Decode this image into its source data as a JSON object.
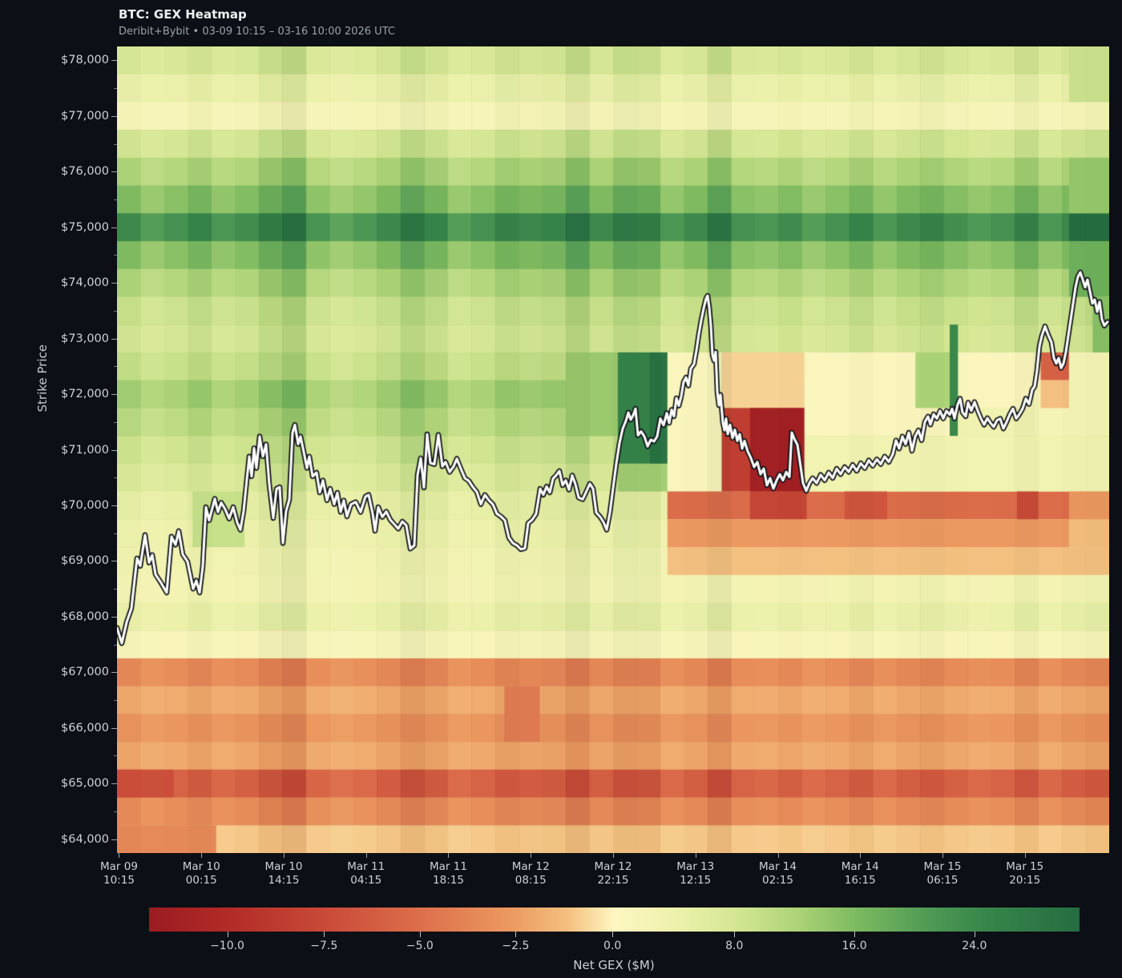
{
  "header": {
    "title": "BTC: GEX Heatmap",
    "subtitle": "Deribit+Bybit • 03-09 10:15 – 03-16 10:00 2026 UTC"
  },
  "y_axis": {
    "label": "Strike Price"
  },
  "colorbar": {
    "label": "Net GEX ($M)",
    "ticks": [
      {
        "label": "−10.0",
        "f": 0.084
      },
      {
        "label": "−7.5",
        "f": 0.188
      },
      {
        "label": "−5.0",
        "f": 0.291
      },
      {
        "label": "−2.5",
        "f": 0.394
      },
      {
        "label": "0.0",
        "f": 0.498
      },
      {
        "label": "8.0",
        "f": 0.629
      },
      {
        "label": "16.0",
        "f": 0.758
      },
      {
        "label": "24.0",
        "f": 0.887
      }
    ]
  },
  "chart_data": {
    "type": "heatmap",
    "title": "BTC: GEX Heatmap",
    "value_label": "Net GEX ($M)",
    "ylabel": "Strike Price",
    "ylim": [
      63750,
      78250
    ],
    "value_scale": {
      "vmin": -12.1,
      "vcenter": 0,
      "vmax": 31
    },
    "colormap_stops": [
      [
        0.0,
        "#9b1b22"
      ],
      [
        0.08,
        "#b02a26"
      ],
      [
        0.19,
        "#c94a38"
      ],
      [
        0.29,
        "#dc6e4b"
      ],
      [
        0.39,
        "#ec9a60"
      ],
      [
        0.45,
        "#f4c07f"
      ],
      [
        0.5,
        "#fdf6c1"
      ],
      [
        0.56,
        "#eff2ae"
      ],
      [
        0.63,
        "#d5e794"
      ],
      [
        0.7,
        "#abd276"
      ],
      [
        0.76,
        "#7cba60"
      ],
      [
        0.84,
        "#4e9955"
      ],
      [
        0.9,
        "#37854a"
      ],
      [
        1.0,
        "#256d41"
      ]
    ],
    "y_ticks_major": [
      "$78,000",
      "$77,000",
      "$76,000",
      "$75,000",
      "$74,000",
      "$73,000",
      "$72,000",
      "$71,000",
      "$70,000",
      "$69,000",
      "$68,000",
      "$67,000",
      "$66,000",
      "$65,000",
      "$64,000"
    ],
    "x_ticks": [
      {
        "date": "Mar 09",
        "time": "10:15",
        "f": 0.002
      },
      {
        "date": "Mar 10",
        "time": "00:15",
        "f": 0.085
      },
      {
        "date": "Mar 10",
        "time": "14:15",
        "f": 0.168
      },
      {
        "date": "Mar 11",
        "time": "04:15",
        "f": 0.251
      },
      {
        "date": "Mar 11",
        "time": "18:15",
        "f": 0.334
      },
      {
        "date": "Mar 12",
        "time": "08:15",
        "f": 0.417
      },
      {
        "date": "Mar 12",
        "time": "22:15",
        "f": 0.5
      },
      {
        "date": "Mar 13",
        "time": "12:15",
        "f": 0.583
      },
      {
        "date": "Mar 14",
        "time": "02:15",
        "f": 0.666
      },
      {
        "date": "Mar 14",
        "time": "16:15",
        "f": 0.749
      },
      {
        "date": "Mar 15",
        "time": "06:15",
        "f": 0.832
      },
      {
        "date": "Mar 15",
        "time": "20:15",
        "f": 0.915
      }
    ],
    "n_cols": 42,
    "rows": [
      {
        "strike": 78000,
        "base": 7.5
      },
      {
        "strike": 77500,
        "base": 4.5
      },
      {
        "strike": 77000,
        "base": 1.8
      },
      {
        "strike": 76500,
        "base": 8.0
      },
      {
        "strike": 76000,
        "base": 11.5
      },
      {
        "strike": 75500,
        "base": 15.0
      },
      {
        "strike": 75000,
        "base": 22.5
      },
      {
        "strike": 74500,
        "base": 15.0
      },
      {
        "strike": 74000,
        "base": 11.5
      },
      {
        "strike": 73500,
        "base": 9.0
      },
      {
        "strike": 73000,
        "base": 8.0
      },
      {
        "strike": 72500,
        "base": 9.5
      },
      {
        "strike": 72000,
        "base": 12.5
      },
      {
        "strike": 71500,
        "base": 10.5
      },
      {
        "strike": 71000,
        "base": 8.5
      },
      {
        "strike": 70500,
        "base": 7.0
      },
      {
        "strike": 70000,
        "base": 5.0
      },
      {
        "strike": 69500,
        "base": 4.0
      },
      {
        "strike": 69000,
        "base": 3.2
      },
      {
        "strike": 68500,
        "base": 2.6
      },
      {
        "strike": 68000,
        "base": 4.4
      },
      {
        "strike": 67500,
        "base": 1.4
      },
      {
        "strike": 67000,
        "base": -3.4
      },
      {
        "strike": 66500,
        "base": -2.0
      },
      {
        "strike": 66000,
        "base": -2.9
      },
      {
        "strike": 65500,
        "base": -2.1
      },
      {
        "strike": 65000,
        "base": -5.8
      },
      {
        "strike": 64500,
        "base": -3.3
      },
      {
        "strike": 64000,
        "base": -1.0
      }
    ],
    "col_mult": [
      1.05,
      0.92,
      1.0,
      1.1,
      0.96,
      1.03,
      1.18,
      1.32,
      0.98,
      0.88,
      0.95,
      1.06,
      1.24,
      1.1,
      0.92,
      1.0,
      1.12,
      1.06,
      1.1,
      1.3,
      1.05,
      1.22,
      1.18,
      0.95,
      1.05,
      1.28,
      1.0,
      0.96,
      1.04,
      0.92,
      1.0,
      1.1,
      0.95,
      1.05,
      1.12,
      1.02,
      0.94,
      1.0,
      1.15,
      0.96,
      1.06,
      1.14
    ],
    "patches": [
      {
        "c0": 3.2,
        "c1": 5.4,
        "hi": 70000,
        "lo": 69500,
        "v": 9.5
      },
      {
        "c0": 19.0,
        "c1": 21.2,
        "hi": 72500,
        "lo": 71500,
        "v": 13.5
      },
      {
        "c0": 21.2,
        "c1": 23.3,
        "hi": 72500,
        "lo": 71000,
        "v": 25.0
      },
      {
        "c0": 22.55,
        "c1": 23.3,
        "hi": 72500,
        "lo": 71000,
        "v": 29.5
      },
      {
        "c0": 21.2,
        "c1": 23.3,
        "hi": 70500,
        "lo": 70500,
        "v": 13.0
      },
      {
        "c0": 23.3,
        "c1": 25.6,
        "hi": 72500,
        "lo": 70500,
        "v": 1.0
      },
      {
        "c0": 23.3,
        "c1": 42,
        "hi": 70000,
        "lo": 70000,
        "v": -5.2
      },
      {
        "c0": 23.3,
        "c1": 42,
        "hi": 69500,
        "lo": 69500,
        "v": -2.7
      },
      {
        "c0": 23.3,
        "c1": 42,
        "hi": 69000,
        "lo": 69000,
        "v": -1.2
      },
      {
        "c0": 25.6,
        "c1": 29.1,
        "hi": 72500,
        "lo": 72000,
        "v": -0.8
      },
      {
        "c0": 25.6,
        "c1": 29.1,
        "hi": 71500,
        "lo": 70500,
        "v": -8.5
      },
      {
        "c0": 26.8,
        "c1": 29.1,
        "hi": 71500,
        "lo": 70500,
        "v": -11.5
      },
      {
        "c0": 26.8,
        "c1": 29.2,
        "hi": 70000,
        "lo": 70000,
        "v": -8.0
      },
      {
        "c0": 29.1,
        "c1": 38.8,
        "hi": 72500,
        "lo": 71500,
        "v": 0.8
      },
      {
        "c0": 29.1,
        "c1": 42,
        "hi": 71000,
        "lo": 70500,
        "v": 3.2
      },
      {
        "c0": 33.8,
        "c1": 35.4,
        "hi": 72500,
        "lo": 72000,
        "v": 12.0
      },
      {
        "c0": 35.25,
        "c1": 35.6,
        "hi": 73000,
        "lo": 71500,
        "v": 24.0
      },
      {
        "c0": 35.6,
        "c1": 38.8,
        "hi": 71500,
        "lo": 71500,
        "v": 3.5
      },
      {
        "c0": 30.8,
        "c1": 32.6,
        "hi": 70000,
        "lo": 70000,
        "v": -6.8
      },
      {
        "c0": 38.1,
        "c1": 39.0,
        "hi": 70000,
        "lo": 70000,
        "v": -7.5
      },
      {
        "c0": 38.8,
        "c1": 42,
        "hi": 72500,
        "lo": 71500,
        "v": 2.0
      },
      {
        "c0": 39.1,
        "c1": 40.3,
        "hi": 72500,
        "lo": 72500,
        "v": -6.0
      },
      {
        "c0": 39.1,
        "c1": 40.3,
        "hi": 72000,
        "lo": 72000,
        "v": -1.2
      },
      {
        "c0": 40.3,
        "c1": 42,
        "hi": 70000,
        "lo": 70000,
        "v": -2.8
      },
      {
        "c0": 40.3,
        "c1": 42,
        "hi": 69500,
        "lo": 69500,
        "v": -1.3
      },
      {
        "c0": 40.3,
        "c1": 42,
        "hi": 75000,
        "lo": 75000,
        "v": 31.0
      },
      {
        "c0": 40.3,
        "c1": 42,
        "hi": 74500,
        "lo": 74000,
        "v": 17.5
      },
      {
        "c0": 41.3,
        "c1": 42,
        "hi": 73500,
        "lo": 73000,
        "v": 15.0
      },
      {
        "c0": 40.3,
        "c1": 42,
        "hi": 76000,
        "lo": 75500,
        "v": 14.0
      },
      {
        "c0": 40.3,
        "c1": 42,
        "hi": 78000,
        "lo": 77500,
        "v": 9.0
      },
      {
        "c0": 0,
        "c1": 4.2,
        "hi": 64000,
        "lo": 64000,
        "v": -3.6
      },
      {
        "c0": 0,
        "c1": 2.4,
        "hi": 65000,
        "lo": 65000,
        "v": -7.2
      },
      {
        "c0": 16.4,
        "c1": 17.9,
        "hi": 66500,
        "lo": 66000,
        "v": -4.3
      }
    ],
    "price_line": {
      "name": "BTC price",
      "points": [
        146,
        67800,
        152,
        67520,
        158,
        67900,
        164,
        68150,
        171,
        69050,
        175,
        68910,
        181,
        69470,
        186,
        68970,
        190,
        69110,
        194,
        68760,
        200,
        68630,
        208,
        68430,
        214,
        69440,
        219,
        69290,
        223,
        69540,
        228,
        69120,
        234,
        68990,
        241,
        68500,
        245,
        68650,
        249,
        68430,
        253,
        68900,
        257,
        69970,
        261,
        69730,
        268,
        70120,
        272,
        69880,
        276,
        70050,
        281,
        69930,
        286,
        69760,
        291,
        69970,
        296,
        69690,
        300,
        69560,
        304,
        69900,
        308,
        70470,
        311,
        70880,
        314,
        70520,
        317,
        71030,
        320,
        70670,
        324,
        71240,
        328,
        70880,
        332,
        71100,
        336,
        70380,
        341,
        69770,
        345,
        70300,
        349,
        70330,
        353,
        69320,
        357,
        69900,
        361,
        70100,
        365,
        71310,
        368,
        71450,
        372,
        71100,
        375,
        71240,
        379,
        70960,
        383,
        70670,
        386,
        70880,
        390,
        70520,
        395,
        70590,
        399,
        70230,
        403,
        70450,
        408,
        70090,
        412,
        70300,
        417,
        70020,
        421,
        70230,
        425,
        69880,
        429,
        70090,
        433,
        69800,
        438,
        70020,
        444,
        70060,
        450,
        69880,
        456,
        70160,
        460,
        70190,
        465,
        69850,
        468,
        69540,
        472,
        69970,
        477,
        69790,
        482,
        69890,
        487,
        69740,
        492,
        69660,
        497,
        69580,
        502,
        69710,
        507,
        69640,
        512,
        69220,
        517,
        69280,
        521,
        70550,
        525,
        70850,
        529,
        70320,
        533,
        71280,
        537,
        70760,
        542,
        70740,
        547,
        71270,
        552,
        70700,
        556,
        70780,
        561,
        70600,
        566,
        70700,
        570,
        70840,
        575,
        70660,
        580,
        70490,
        585,
        70440,
        590,
        70330,
        595,
        70240,
        600,
        70020,
        605,
        70190,
        610,
        70090,
        615,
        70020,
        620,
        69850,
        625,
        69800,
        630,
        69730,
        635,
        69420,
        640,
        69320,
        645,
        69280,
        650,
        69210,
        655,
        69230,
        659,
        69680,
        664,
        69740,
        669,
        69850,
        674,
        70300,
        678,
        70190,
        682,
        70340,
        686,
        70230,
        690,
        70480,
        694,
        70540,
        698,
        70620,
        702,
        70360,
        706,
        70450,
        710,
        70280,
        714,
        70540,
        718,
        70380,
        722,
        70140,
        727,
        70110,
        731,
        70230,
        736,
        70390,
        740,
        70300,
        744,
        69870,
        749,
        69790,
        753,
        69700,
        757,
        69560,
        761,
        69870,
        765,
        70310,
        769,
        70750,
        773,
        71120,
        777,
        71380,
        781,
        71520,
        784,
        71670,
        787,
        71540,
        790,
        71620,
        793,
        71740,
        796,
        71260,
        800,
        71330,
        804,
        71240,
        808,
        71060,
        812,
        71180,
        816,
        71150,
        820,
        71240,
        824,
        71560,
        828,
        71440,
        832,
        71660,
        835,
        71480,
        838,
        71720,
        841,
        71600,
        844,
        71930,
        847,
        71790,
        850,
        71960,
        853,
        72220,
        856,
        72300,
        859,
        72150,
        862,
        72460,
        866,
        72540,
        869,
        72790,
        872,
        73080,
        875,
        73330,
        878,
        73540,
        881,
        73720,
        883,
        73770,
        885,
        73560,
        887,
        73230,
        889,
        72700,
        891,
        72600,
        893,
        72760,
        895,
        72040,
        897,
        71800,
        899,
        71990,
        902,
        71480,
        904,
        71350,
        906,
        71560,
        908,
        71280,
        911,
        71450,
        914,
        71210,
        917,
        71360,
        920,
        71160,
        923,
        71280,
        926,
        71020,
        929,
        71160,
        933,
        70970,
        937,
        70850,
        941,
        70690,
        945,
        70780,
        949,
        70560,
        953,
        70660,
        957,
        70360,
        961,
        70490,
        965,
        70300,
        969,
        70450,
        973,
        70560,
        977,
        70450,
        981,
        70600,
        985,
        70510,
        988,
        71310,
        991,
        71200,
        995,
        71090,
        999,
        70700,
        1002,
        70400,
        1006,
        70260,
        1010,
        70400,
        1014,
        70490,
        1019,
        70400,
        1024,
        70550,
        1029,
        70450,
        1034,
        70590,
        1039,
        70490,
        1044,
        70660,
        1049,
        70560,
        1054,
        70690,
        1059,
        70600,
        1064,
        70730,
        1069,
        70620,
        1074,
        70760,
        1079,
        70670,
        1084,
        70810,
        1089,
        70710,
        1094,
        70830,
        1099,
        70740,
        1104,
        70880,
        1109,
        70780,
        1114,
        70920,
        1118,
        71170,
        1122,
        71020,
        1126,
        71240,
        1130,
        71100,
        1134,
        71310,
        1138,
        70980,
        1142,
        71240,
        1146,
        71350,
        1150,
        71170,
        1154,
        71500,
        1158,
        71600,
        1161,
        71450,
        1165,
        71640,
        1169,
        71560,
        1173,
        71700,
        1177,
        71560,
        1181,
        71700,
        1185,
        71630,
        1188,
        71740,
        1191,
        71560,
        1195,
        71820,
        1198,
        71920,
        1201,
        71670,
        1205,
        71600,
        1208,
        71850,
        1212,
        71700,
        1216,
        71860,
        1220,
        71700,
        1224,
        71560,
        1228,
        71450,
        1232,
        71570,
        1236,
        71480,
        1240,
        71410,
        1244,
        71530,
        1248,
        71560,
        1252,
        71380,
        1256,
        71500,
        1260,
        71640,
        1264,
        71740,
        1268,
        71560,
        1272,
        71640,
        1276,
        71740,
        1280,
        71920,
        1284,
        71820,
        1288,
        72080,
        1291,
        72140,
        1294,
        72430,
        1297,
        72860,
        1300,
        73050,
        1304,
        73220,
        1308,
        73060,
        1312,
        72930,
        1315,
        72650,
        1318,
        72550,
        1321,
        72650,
        1324,
        72470,
        1327,
        72550,
        1330,
        72760,
        1333,
        73050,
        1336,
        73340,
        1339,
        73630,
        1342,
        73920,
        1345,
        74110,
        1348,
        74190,
        1351,
        74060,
        1354,
        73920,
        1357,
        74060,
        1360,
        73850,
        1363,
        73630,
        1366,
        73700,
        1369,
        73480,
        1372,
        73660,
        1375,
        73340,
        1378,
        73230,
        1382,
        73300
      ]
    }
  }
}
